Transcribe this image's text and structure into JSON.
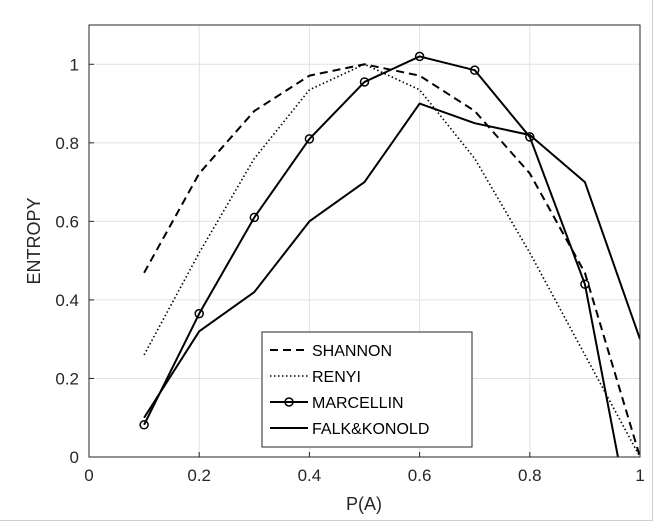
{
  "chart_data": {
    "type": "line",
    "title": "",
    "xlabel": "P(A)",
    "ylabel": "ENTROPY",
    "xlim": [
      0,
      1
    ],
    "ylim": [
      0,
      1.1
    ],
    "grid": true,
    "legend_position": "bottom-center",
    "x_ticks": [
      "0",
      "0.2",
      "0.4",
      "0.6",
      "0.8",
      "1"
    ],
    "y_ticks": [
      "0",
      "0.2",
      "0.4",
      "0.6",
      "0.8",
      "1"
    ],
    "series": [
      {
        "name": "SHANNON",
        "style": "dashed",
        "color": "#000000",
        "marker": "none",
        "x": [
          0.1,
          0.2,
          0.3,
          0.4,
          0.5,
          0.6,
          0.7,
          0.8,
          0.9,
          1.0
        ],
        "y": [
          0.469,
          0.722,
          0.881,
          0.971,
          1.0,
          0.971,
          0.881,
          0.722,
          0.469,
          0.0
        ]
      },
      {
        "name": "RENYI",
        "style": "dotted",
        "color": "#000000",
        "marker": "none",
        "x": [
          0.1,
          0.2,
          0.3,
          0.4,
          0.5,
          0.6,
          0.7,
          0.8,
          0.9,
          1.0
        ],
        "y": [
          0.26,
          0.52,
          0.76,
          0.935,
          1.0,
          0.935,
          0.76,
          0.52,
          0.26,
          0.0
        ]
      },
      {
        "name": "MARCELLIN",
        "style": "solid",
        "color": "#000000",
        "marker": "circle",
        "x": [
          0.1,
          0.2,
          0.3,
          0.4,
          0.5,
          0.6,
          0.7,
          0.8,
          0.9,
          0.96
        ],
        "y": [
          0.082,
          0.365,
          0.61,
          0.81,
          0.955,
          1.02,
          0.985,
          0.815,
          0.44,
          0.0
        ]
      },
      {
        "name": "FALK&KONOLD",
        "style": "solid",
        "color": "#000000",
        "marker": "none",
        "x": [
          0.1,
          0.2,
          0.3,
          0.4,
          0.5,
          0.6,
          0.7,
          0.8,
          0.9,
          1.0
        ],
        "y": [
          0.1,
          0.32,
          0.42,
          0.6,
          0.7,
          0.9,
          0.85,
          0.82,
          0.7,
          0.3
        ]
      }
    ]
  }
}
